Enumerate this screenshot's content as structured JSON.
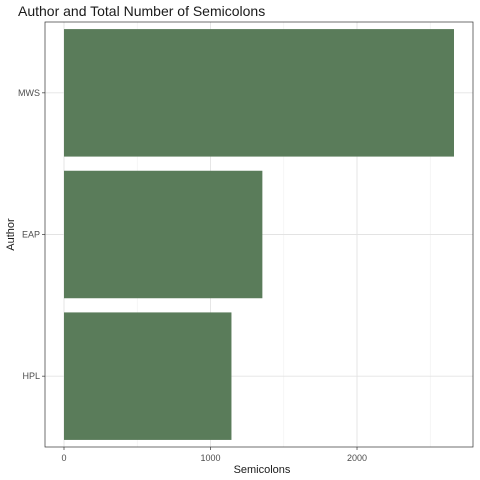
{
  "chart_data": {
    "type": "bar",
    "orientation": "horizontal",
    "title": "Author and Total Number of Semicolons",
    "xlabel": "Semicolons",
    "ylabel": "Author",
    "categories": [
      "MWS",
      "EAP",
      "HPL"
    ],
    "values": [
      2662,
      1354,
      1143
    ],
    "xlim": [
      0,
      2800
    ],
    "x_ticks": [
      0,
      1000,
      2000
    ],
    "grid": true,
    "bar_color": "#5a7c5a",
    "legend": "none"
  }
}
